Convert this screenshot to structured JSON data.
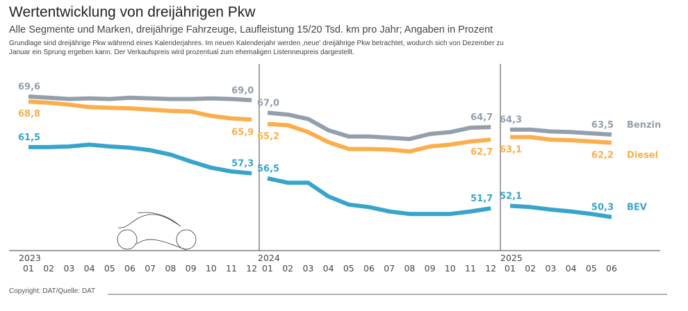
{
  "title": "Wertentwicklung von dreijährigen Pkw",
  "subtitle": "Alle Segmente und Marken, dreijährige Fahrzeuge, Laufleistung 15/20 Tsd. km pro Jahr; Angaben in Prozent",
  "note": "Grundlage sind dreijährige Pkw während eines Kalenderjahres. Im neuen Kalenderjahr werden ‚neue' dreijährige Pkw betrachtet, wodurch sich von Dezember zu Januar ein Sprung ergeben kann. Der Verkaufspreis wird prozentual zum ehemaligen Listenneupreis dargestellt.",
  "copyright": "Copyright: DAT/Quelle: DAT",
  "chart_data": {
    "type": "line",
    "title": "Wertentwicklung von dreijährigen Pkw",
    "xlabel": "",
    "ylabel": "",
    "grid": false,
    "legend": "right (labels at line ends)",
    "years": [
      {
        "label": "2023",
        "months": [
          "01",
          "02",
          "03",
          "04",
          "05",
          "06",
          "07",
          "08",
          "09",
          "10",
          "11",
          "12"
        ]
      },
      {
        "label": "2024",
        "months": [
          "01",
          "02",
          "03",
          "04",
          "05",
          "06",
          "07",
          "08",
          "09",
          "10",
          "11",
          "12"
        ]
      },
      {
        "label": "2025",
        "months": [
          "01",
          "02",
          "03",
          "04",
          "05",
          "06"
        ]
      }
    ],
    "ylim": [
      45,
      72
    ],
    "series": [
      {
        "name": "Benzin",
        "color": "#939fab",
        "label_pos": "above",
        "values": [
          [
            69.6,
            69.4,
            69.2,
            69.3,
            69.2,
            69.4,
            69.3,
            69.2,
            69.2,
            69.3,
            69.2,
            69.0
          ],
          [
            67.0,
            66.7,
            66.0,
            64.2,
            63.2,
            63.2,
            63.0,
            62.8,
            63.6,
            63.9,
            64.6,
            64.7
          ],
          [
            64.3,
            64.3,
            64.0,
            63.9,
            63.7,
            63.5
          ]
        ],
        "endpoint_labels": [
          [
            "69,6",
            "69,0"
          ],
          [
            "67,0",
            "64,7"
          ],
          [
            "64,3",
            "63,5"
          ]
        ]
      },
      {
        "name": "Diesel",
        "color": "#fbae4a",
        "label_pos": "below",
        "values": [
          [
            68.8,
            68.6,
            68.3,
            67.9,
            67.8,
            67.7,
            67.5,
            67.3,
            67.2,
            66.5,
            66.1,
            65.9
          ],
          [
            65.2,
            65.0,
            63.9,
            62.3,
            61.2,
            61.2,
            61.1,
            60.8,
            61.6,
            61.9,
            62.4,
            62.7
          ],
          [
            63.1,
            63.1,
            62.7,
            62.6,
            62.4,
            62.2
          ]
        ],
        "endpoint_labels": [
          [
            "68,8",
            "65,9"
          ],
          [
            "65,2",
            "62,7"
          ],
          [
            "63,1",
            "62,2"
          ]
        ]
      },
      {
        "name": "BEV",
        "color": "#37a5cb",
        "label_pos": "above",
        "values": [
          [
            61.5,
            61.5,
            61.6,
            61.9,
            61.6,
            61.4,
            61.0,
            60.3,
            59.2,
            58.2,
            57.6,
            57.3
          ],
          [
            56.5,
            55.8,
            55.8,
            53.6,
            52.3,
            51.9,
            51.2,
            50.8,
            50.8,
            50.8,
            51.2,
            51.7
          ],
          [
            52.1,
            51.9,
            51.5,
            51.2,
            50.8,
            50.3
          ]
        ],
        "endpoint_labels": [
          [
            "61,5",
            "57,3"
          ],
          [
            "56,5",
            "51,7"
          ],
          [
            "52,1",
            "50,3"
          ]
        ]
      }
    ]
  }
}
